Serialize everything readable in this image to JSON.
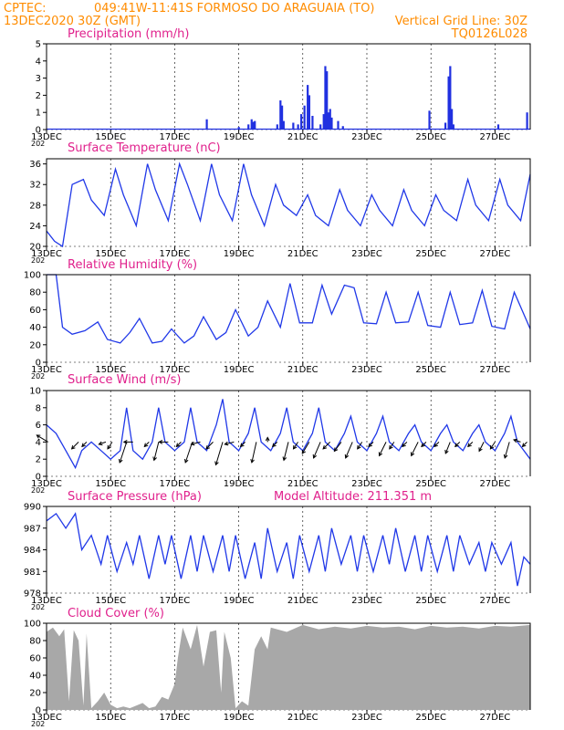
{
  "header": {
    "org": "CPTEC:",
    "location": "049:41W-11:41S  FORMOSO DO ARAGUAIA (TO)",
    "datetime": "13DEC2020 30Z (GMT)",
    "grid_note": "Vertical Grid Line: 30Z",
    "code": "TQ0126L028"
  },
  "x_ticks": [
    "13DEC",
    "15DEC",
    "17DEC",
    "19DEC",
    "21DEC",
    "23DEC",
    "25DEC",
    "27DEC"
  ],
  "year_label": "202",
  "colors": {
    "line": "#2038e8",
    "bars": "#2030e0",
    "cloud": "#a8a8a8",
    "header": "#ff8c00",
    "title": "#e0208c",
    "wind_arrow": "#000000"
  },
  "chart_data": [
    {
      "type": "bar",
      "title": "Precipitation (mm/h)",
      "ylim": [
        0,
        5
      ],
      "yticks": [
        0,
        1,
        2,
        3,
        4,
        5
      ],
      "xlim_days": [
        13.0,
        28.1
      ],
      "bars": [
        {
          "x": 18.0,
          "y": 0.6
        },
        {
          "x": 19.0,
          "y": 0.15
        },
        {
          "x": 19.3,
          "y": 0.3
        },
        {
          "x": 19.4,
          "y": 0.6
        },
        {
          "x": 19.45,
          "y": 0.45
        },
        {
          "x": 19.5,
          "y": 0.5
        },
        {
          "x": 20.2,
          "y": 0.3
        },
        {
          "x": 20.3,
          "y": 1.7
        },
        {
          "x": 20.35,
          "y": 1.4
        },
        {
          "x": 20.4,
          "y": 0.5
        },
        {
          "x": 20.7,
          "y": 0.4
        },
        {
          "x": 20.85,
          "y": 0.3
        },
        {
          "x": 20.95,
          "y": 0.9
        },
        {
          "x": 21.05,
          "y": 1.4
        },
        {
          "x": 21.15,
          "y": 2.6
        },
        {
          "x": 21.2,
          "y": 2.0
        },
        {
          "x": 21.3,
          "y": 0.8
        },
        {
          "x": 21.55,
          "y": 0.3
        },
        {
          "x": 21.65,
          "y": 0.9
        },
        {
          "x": 21.7,
          "y": 3.7
        },
        {
          "x": 21.75,
          "y": 3.4
        },
        {
          "x": 21.8,
          "y": 1.0
        },
        {
          "x": 21.85,
          "y": 1.2
        },
        {
          "x": 21.9,
          "y": 0.7
        },
        {
          "x": 22.1,
          "y": 0.5
        },
        {
          "x": 22.25,
          "y": 0.2
        },
        {
          "x": 24.95,
          "y": 1.1
        },
        {
          "x": 25.45,
          "y": 0.4
        },
        {
          "x": 25.55,
          "y": 3.1
        },
        {
          "x": 25.6,
          "y": 3.7
        },
        {
          "x": 25.65,
          "y": 1.2
        },
        {
          "x": 25.7,
          "y": 0.3
        },
        {
          "x": 27.1,
          "y": 0.3
        },
        {
          "x": 28.0,
          "y": 1.0
        }
      ]
    },
    {
      "type": "line",
      "title": "Surface Temperature (nC)",
      "ylim": [
        20,
        37
      ],
      "yticks": [
        20,
        24,
        28,
        32,
        36
      ],
      "xlim_days": [
        13.0,
        28.1
      ],
      "x": [
        13.0,
        13.25,
        13.5,
        13.8,
        14.15,
        14.4,
        14.8,
        15.15,
        15.4,
        15.8,
        16.15,
        16.4,
        16.8,
        17.15,
        17.4,
        17.8,
        18.15,
        18.4,
        18.8,
        19.15,
        19.4,
        19.8,
        20.15,
        20.4,
        20.8,
        21.15,
        21.4,
        21.8,
        22.15,
        22.4,
        22.8,
        23.15,
        23.4,
        23.8,
        24.15,
        24.4,
        24.8,
        25.15,
        25.4,
        25.8,
        26.15,
        26.4,
        26.8,
        27.15,
        27.4,
        27.8,
        28.1
      ],
      "y": [
        23,
        21,
        20,
        32,
        33,
        29,
        26,
        35,
        30,
        24,
        36,
        31,
        25,
        36,
        32,
        25,
        36,
        30,
        25,
        36,
        30,
        24,
        32,
        28,
        26,
        30,
        26,
        24,
        31,
        27,
        24,
        30,
        27,
        24,
        31,
        27,
        24,
        30,
        27,
        25,
        33,
        28,
        25,
        33,
        28,
        25,
        34
      ]
    },
    {
      "type": "line",
      "title": "Relative Humidity (%)",
      "ylim": [
        0,
        100
      ],
      "yticks": [
        0,
        20,
        40,
        60,
        80,
        100
      ],
      "xlim_days": [
        13.0,
        28.1
      ],
      "x": [
        13.0,
        13.3,
        13.5,
        13.8,
        14.2,
        14.6,
        14.9,
        15.3,
        15.6,
        15.9,
        16.3,
        16.6,
        16.9,
        17.3,
        17.6,
        17.9,
        18.3,
        18.6,
        18.9,
        19.3,
        19.6,
        19.9,
        20.3,
        20.6,
        20.9,
        21.3,
        21.6,
        21.9,
        22.3,
        22.6,
        22.9,
        23.3,
        23.6,
        23.9,
        24.3,
        24.6,
        24.9,
        25.3,
        25.6,
        25.9,
        26.3,
        26.6,
        26.9,
        27.3,
        27.6,
        28.1
      ],
      "y": [
        100,
        100,
        40,
        32,
        36,
        46,
        26,
        22,
        34,
        50,
        22,
        24,
        38,
        22,
        30,
        52,
        26,
        34,
        60,
        30,
        40,
        70,
        40,
        90,
        45,
        45,
        88,
        55,
        88,
        85,
        45,
        44,
        80,
        45,
        46,
        80,
        42,
        40,
        80,
        43,
        45,
        82,
        41,
        38,
        80,
        38
      ]
    },
    {
      "type": "line",
      "title": "Surface Wind (m/s)",
      "ylim": [
        0,
        10
      ],
      "yticks": [
        0,
        2,
        4,
        6,
        8,
        10
      ],
      "xlim_days": [
        13.0,
        28.1
      ],
      "x": [
        13.0,
        13.3,
        13.6,
        13.9,
        14.1,
        14.4,
        14.7,
        15.0,
        15.3,
        15.5,
        15.7,
        16.0,
        16.3,
        16.5,
        16.7,
        17.0,
        17.3,
        17.5,
        17.7,
        18.0,
        18.3,
        18.5,
        18.7,
        19.0,
        19.3,
        19.5,
        19.7,
        20.0,
        20.3,
        20.5,
        20.7,
        21.0,
        21.3,
        21.5,
        21.7,
        22.0,
        22.3,
        22.5,
        22.7,
        23.0,
        23.3,
        23.5,
        23.7,
        24.0,
        24.3,
        24.5,
        24.7,
        25.0,
        25.3,
        25.5,
        25.7,
        26.0,
        26.3,
        26.5,
        26.7,
        27.0,
        27.3,
        27.5,
        27.7,
        28.1
      ],
      "y": [
        6,
        5,
        3,
        1,
        3,
        4,
        3,
        2,
        3,
        8,
        3,
        2,
        4,
        8,
        4,
        3,
        4,
        8,
        4,
        3,
        6,
        9,
        4,
        3,
        5,
        8,
        4,
        3,
        5,
        8,
        4,
        3,
        5,
        8,
        4,
        3,
        5,
        7,
        4,
        3,
        5,
        7,
        4,
        3,
        5,
        6,
        4,
        3,
        5,
        6,
        4,
        3,
        5,
        6,
        4,
        3,
        5,
        7,
        4,
        2
      ],
      "arrows": [
        {
          "x": 13.05,
          "u": -2.5,
          "v": 1.5
        },
        {
          "x": 14.0,
          "u": -1.5,
          "v": -1.5
        },
        {
          "x": 14.25,
          "u": -1.0,
          "v": -1.0
        },
        {
          "x": 14.85,
          "u": -1.5,
          "v": -0.5
        },
        {
          "x": 15.05,
          "u": -1.0,
          "v": -1.5
        },
        {
          "x": 15.5,
          "u": -1.5,
          "v": -4.5
        },
        {
          "x": 15.7,
          "u": -2.0,
          "v": 0
        },
        {
          "x": 16.2,
          "u": -1.0,
          "v": -1.0
        },
        {
          "x": 16.5,
          "u": -1.0,
          "v": -4.0
        },
        {
          "x": 16.8,
          "u": -2.0,
          "v": 0
        },
        {
          "x": 17.2,
          "u": -1.0,
          "v": -1.0
        },
        {
          "x": 17.55,
          "u": -1.5,
          "v": -4.5
        },
        {
          "x": 17.8,
          "u": -2.0,
          "v": -0.5
        },
        {
          "x": 18.2,
          "u": -1.5,
          "v": -1.5
        },
        {
          "x": 18.5,
          "u": -1.5,
          "v": -5.0
        },
        {
          "x": 18.85,
          "u": -2.0,
          "v": -0.5
        },
        {
          "x": 19.2,
          "u": -1.0,
          "v": -1.0
        },
        {
          "x": 19.55,
          "u": -1.0,
          "v": -4.5
        },
        {
          "x": 19.9,
          "u": 0,
          "v": 1.0
        },
        {
          "x": 20.2,
          "u": -1.0,
          "v": -1.0
        },
        {
          "x": 20.55,
          "u": -1.0,
          "v": -4.0
        },
        {
          "x": 20.85,
          "u": -1.0,
          "v": -1.5
        },
        {
          "x": 21.2,
          "u": -1.5,
          "v": -2.5
        },
        {
          "x": 21.55,
          "u": -1.5,
          "v": -3.5
        },
        {
          "x": 21.85,
          "u": -1.5,
          "v": -1.5
        },
        {
          "x": 22.2,
          "u": -1.5,
          "v": -2.0
        },
        {
          "x": 22.55,
          "u": -1.5,
          "v": -3.5
        },
        {
          "x": 22.85,
          "u": -1.0,
          "v": -1.5
        },
        {
          "x": 23.2,
          "u": -1.0,
          "v": -1.0
        },
        {
          "x": 23.6,
          "u": -1.5,
          "v": -3.0
        },
        {
          "x": 23.85,
          "u": -1.0,
          "v": -1.5
        },
        {
          "x": 24.25,
          "u": -1.0,
          "v": -1.0
        },
        {
          "x": 24.6,
          "u": -1.5,
          "v": -3.0
        },
        {
          "x": 24.85,
          "u": -1.0,
          "v": -1.0
        },
        {
          "x": 25.25,
          "u": -1.0,
          "v": -1.0
        },
        {
          "x": 25.6,
          "u": -1.0,
          "v": -2.5
        },
        {
          "x": 25.9,
          "u": -1.0,
          "v": -1.0
        },
        {
          "x": 26.3,
          "u": -1.0,
          "v": -1.0
        },
        {
          "x": 26.65,
          "u": -1.0,
          "v": -2.0
        },
        {
          "x": 27.0,
          "u": -1.0,
          "v": -1.5
        },
        {
          "x": 27.45,
          "u": -1.0,
          "v": -3.5
        },
        {
          "x": 27.8,
          "u": -1.5,
          "v": 0.5
        },
        {
          "x": 28.0,
          "u": -1.0,
          "v": -1.0
        }
      ]
    },
    {
      "type": "line",
      "title": "Surface Pressure (hPa)",
      "subtitle": "Model Altitude: 211.351 m",
      "ylim": [
        978,
        990
      ],
      "yticks": [
        978,
        981,
        984,
        987,
        990
      ],
      "xlim_days": [
        13.0,
        28.1
      ],
      "x": [
        13.0,
        13.3,
        13.6,
        13.9,
        14.1,
        14.4,
        14.7,
        14.9,
        15.2,
        15.5,
        15.7,
        15.9,
        16.2,
        16.5,
        16.7,
        16.9,
        17.2,
        17.5,
        17.7,
        17.9,
        18.2,
        18.5,
        18.7,
        18.9,
        19.2,
        19.5,
        19.7,
        19.9,
        20.2,
        20.5,
        20.7,
        20.9,
        21.2,
        21.5,
        21.7,
        21.9,
        22.2,
        22.5,
        22.7,
        22.9,
        23.2,
        23.5,
        23.7,
        23.9,
        24.2,
        24.5,
        24.7,
        24.9,
        25.2,
        25.5,
        25.7,
        25.9,
        26.2,
        26.5,
        26.7,
        26.9,
        27.2,
        27.5,
        27.7,
        27.9,
        28.1
      ],
      "y": [
        988,
        989,
        987,
        989,
        984,
        986,
        982,
        986,
        981,
        985,
        982,
        986,
        980,
        986,
        982,
        986,
        980,
        986,
        981,
        986,
        981,
        986,
        981,
        986,
        980,
        985,
        980,
        987,
        981,
        985,
        980,
        986,
        981,
        986,
        981,
        987,
        982,
        986,
        981,
        986,
        981,
        986,
        982,
        987,
        981,
        986,
        981,
        986,
        981,
        986,
        981,
        986,
        982,
        985,
        981,
        985,
        982,
        985,
        979,
        983,
        982
      ]
    },
    {
      "type": "area",
      "title": "Cloud Cover (%)",
      "ylim": [
        0,
        100
      ],
      "yticks": [
        0,
        20,
        40,
        60,
        80,
        100
      ],
      "xlim_days": [
        13.0,
        28.1
      ],
      "x": [
        13.0,
        13.2,
        13.4,
        13.55,
        13.7,
        13.85,
        14.0,
        14.15,
        14.25,
        14.4,
        14.6,
        14.8,
        15.0,
        15.2,
        15.4,
        15.6,
        15.8,
        16.0,
        16.2,
        16.4,
        16.6,
        16.8,
        17.0,
        17.1,
        17.25,
        17.5,
        17.7,
        17.9,
        18.1,
        18.3,
        18.45,
        18.55,
        18.75,
        18.9,
        19.1,
        19.3,
        19.5,
        19.7,
        19.9,
        20.0,
        20.5,
        21.0,
        21.5,
        22.0,
        22.5,
        23.0,
        23.5,
        24.0,
        24.5,
        25.0,
        25.5,
        26.0,
        26.5,
        27.0,
        27.5,
        28.1
      ],
      "y": [
        90,
        95,
        85,
        93,
        10,
        92,
        80,
        5,
        88,
        2,
        10,
        20,
        6,
        2,
        4,
        2,
        5,
        8,
        2,
        4,
        15,
        12,
        30,
        60,
        95,
        70,
        98,
        50,
        90,
        92,
        20,
        90,
        60,
        2,
        10,
        5,
        70,
        85,
        70,
        95,
        90,
        98,
        93,
        96,
        94,
        97,
        95,
        96,
        93,
        97,
        95,
        96,
        94,
        97,
        96,
        98
      ]
    }
  ]
}
